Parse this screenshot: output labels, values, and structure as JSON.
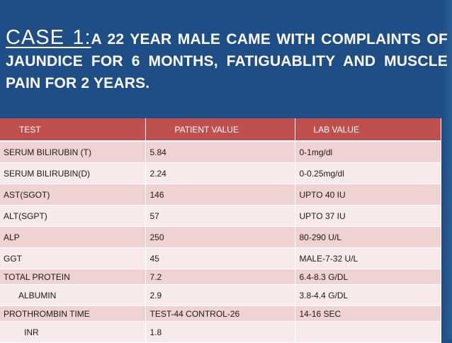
{
  "title": {
    "case_label": "CASE 1:",
    "text": "A 22 YEAR MALE CAME WITH COMPLAINTS OF JAUNDICE FOR 6 MONTHS, FATIGUABLITY AND MUSCLE PAIN FOR 2 YEARS."
  },
  "table": {
    "headers": [
      "TEST",
      "PATIENT VALUE",
      "LAB VALUE"
    ],
    "rows": [
      [
        "SERUM BILIRUBIN (T)",
        "5.84",
        "0-1mg/dl"
      ],
      [
        "SERUM BILIRUBIN(D)",
        "2.24",
        "0-0.25mg/dl"
      ],
      [
        "AST(SGOT)",
        "146",
        "UPTO 40 IU"
      ],
      [
        "ALT(SGPT)",
        "57",
        "UPTO 37 IU"
      ],
      [
        "ALP",
        "250",
        "80-290 U/L"
      ],
      [
        "GGT",
        "45",
        "MALE-7-32 U/L"
      ],
      [
        "TOTAL PROTEIN",
        "7.2",
        "6.4-8.3 G/DL"
      ],
      [
        "ALBUMIN",
        "2.9",
        "3.8-4.4 G/DL"
      ],
      [
        "PROTHROMBIN TIME",
        "TEST-44 CONTROL-26",
        "14-16 SEC"
      ],
      [
        "INR",
        "1.8",
        ""
      ]
    ]
  },
  "colors": {
    "background": "#1f4e86",
    "header": "#c0504d",
    "row_odd": "#efd3d2",
    "row_even": "#f8eaea"
  }
}
